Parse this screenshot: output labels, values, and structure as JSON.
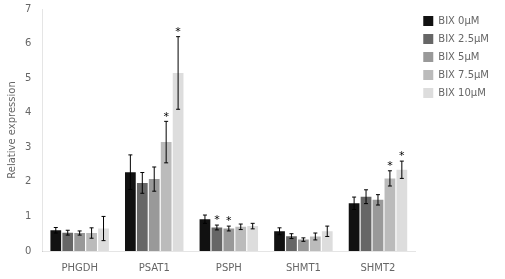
{
  "chart_data": {
    "type": "bar",
    "categories": [
      "PHGDH",
      "PSAT1",
      "PSPH",
      "SHMT1",
      "SHMT2"
    ],
    "series": [
      {
        "name": "BIX 0μM",
        "color": "#111111",
        "values": [
          0.6,
          2.28,
          0.92,
          0.57,
          1.38
        ],
        "errors": [
          0.08,
          0.5,
          0.12,
          0.1,
          0.18
        ]
      },
      {
        "name": "BIX 2.5μM",
        "color": "#666666",
        "values": [
          0.53,
          1.97,
          0.68,
          0.43,
          1.57
        ],
        "errors": [
          0.07,
          0.3,
          0.07,
          0.07,
          0.2
        ]
      },
      {
        "name": "BIX 5μM",
        "color": "#999999",
        "values": [
          0.52,
          2.08,
          0.65,
          0.33,
          1.48
        ],
        "errors": [
          0.06,
          0.35,
          0.07,
          0.05,
          0.15
        ]
      },
      {
        "name": "BIX 7.5μM",
        "color": "#bbbbbb",
        "values": [
          0.52,
          3.15,
          0.7,
          0.42,
          2.1
        ],
        "errors": [
          0.15,
          0.6,
          0.08,
          0.1,
          0.22
        ]
      },
      {
        "name": "BIX 10μM",
        "color": "#dddddd",
        "values": [
          0.65,
          5.15,
          0.72,
          0.57,
          2.35
        ],
        "errors": [
          0.35,
          1.05,
          0.08,
          0.15,
          0.25
        ]
      }
    ],
    "annotations": [
      {
        "text": "*",
        "series": "BIX 2.5μM",
        "category": "PSPH"
      },
      {
        "text": "*",
        "series": "BIX 5μM",
        "category": "PSPH"
      },
      {
        "text": "*",
        "series": "BIX 7.5μM",
        "category": "PSAT1"
      },
      {
        "text": "*",
        "series": "BIX 7.5μM",
        "category": "SHMT2"
      },
      {
        "text": "*",
        "series": "BIX 10μM",
        "category": "PSAT1"
      },
      {
        "text": "*",
        "series": "BIX 10μM",
        "category": "SHMT2"
      }
    ],
    "ylabel": "Relative expression",
    "ylim": [
      0,
      7
    ],
    "yticks": [
      0,
      1,
      2,
      3,
      4,
      5,
      6,
      7
    ],
    "grid": false,
    "legend": "right"
  }
}
